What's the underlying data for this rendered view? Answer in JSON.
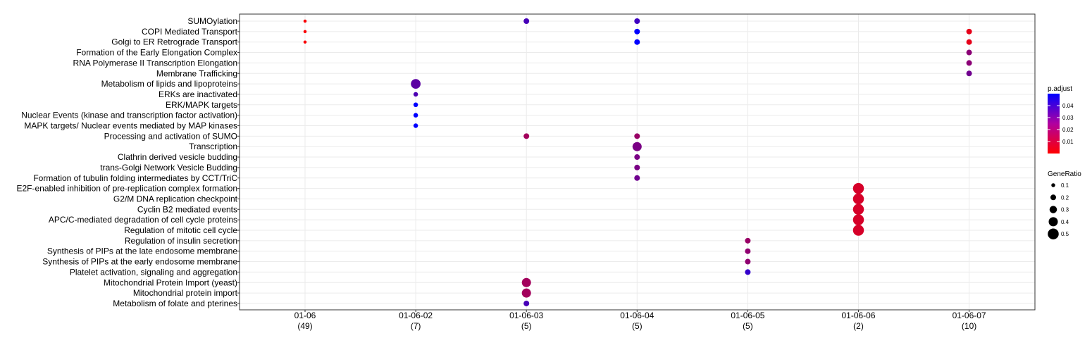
{
  "chart_data": {
    "type": "scatter",
    "title": "",
    "xlabel": "",
    "ylabel": "",
    "categories_x": [
      {
        "label": "01-06",
        "count": "(49)"
      },
      {
        "label": "01-06-02",
        "count": "(7)"
      },
      {
        "label": "01-06-03",
        "count": "(5)"
      },
      {
        "label": "01-06-04",
        "count": "(5)"
      },
      {
        "label": "01-06-05",
        "count": "(5)"
      },
      {
        "label": "01-06-06",
        "count": "(2)"
      },
      {
        "label": "01-06-07",
        "count": "(10)"
      }
    ],
    "categories_y": [
      "SUMOylation",
      "COPI Mediated Transport",
      "Golgi to ER Retrograde Transport",
      "Formation of the Early Elongation Complex",
      "RNA Polymerase II Transcription Elongation",
      "Membrane Trafficking",
      "Metabolism of lipids and lipoproteins",
      "ERKs are inactivated",
      "ERK/MAPK targets",
      "Nuclear Events (kinase and transcription factor activation)",
      "MAPK targets/ Nuclear events mediated by MAP kinases",
      "Processing and activation of SUMO",
      "Transcription",
      "Clathrin derived vesicle budding",
      "trans-Golgi Network Vesicle Budding",
      "Formation of tubulin folding intermediates by CCT/TriC",
      "E2F-enabled inhibition of pre-replication complex formation",
      "G2/M DNA replication checkpoint",
      "Cyclin B2 mediated events",
      "APC/C-mediated degradation of cell cycle proteins",
      "Regulation of mitotic cell cycle",
      "Regulation of insulin secretion",
      "Synthesis of PIPs at the late endosome membrane",
      "Synthesis of PIPs at the early endosome membrane",
      "Platelet activation, signaling and aggregation",
      "Mitochondrial Protein Import (yeast)",
      "Mitochondrial protein import",
      "Metabolism of folate and pterines"
    ],
    "points": [
      {
        "x": 0,
        "y": 0,
        "gene_ratio": 0.06,
        "p_adjust": 0.001
      },
      {
        "x": 0,
        "y": 1,
        "gene_ratio": 0.06,
        "p_adjust": 0.001
      },
      {
        "x": 0,
        "y": 2,
        "gene_ratio": 0.06,
        "p_adjust": 0.001
      },
      {
        "x": 2,
        "y": 0,
        "gene_ratio": 0.2,
        "p_adjust": 0.036
      },
      {
        "x": 3,
        "y": 0,
        "gene_ratio": 0.2,
        "p_adjust": 0.038
      },
      {
        "x": 3,
        "y": 1,
        "gene_ratio": 0.2,
        "p_adjust": 0.05
      },
      {
        "x": 3,
        "y": 2,
        "gene_ratio": 0.2,
        "p_adjust": 0.05
      },
      {
        "x": 6,
        "y": 1,
        "gene_ratio": 0.2,
        "p_adjust": 0.005
      },
      {
        "x": 6,
        "y": 2,
        "gene_ratio": 0.2,
        "p_adjust": 0.005
      },
      {
        "x": 6,
        "y": 3,
        "gene_ratio": 0.2,
        "p_adjust": 0.023
      },
      {
        "x": 6,
        "y": 4,
        "gene_ratio": 0.2,
        "p_adjust": 0.023
      },
      {
        "x": 6,
        "y": 5,
        "gene_ratio": 0.2,
        "p_adjust": 0.028
      },
      {
        "x": 1,
        "y": 6,
        "gene_ratio": 0.43,
        "p_adjust": 0.032
      },
      {
        "x": 1,
        "y": 7,
        "gene_ratio": 0.14,
        "p_adjust": 0.035
      },
      {
        "x": 1,
        "y": 8,
        "gene_ratio": 0.14,
        "p_adjust": 0.05
      },
      {
        "x": 1,
        "y": 9,
        "gene_ratio": 0.14,
        "p_adjust": 0.05
      },
      {
        "x": 1,
        "y": 10,
        "gene_ratio": 0.14,
        "p_adjust": 0.05
      },
      {
        "x": 2,
        "y": 11,
        "gene_ratio": 0.2,
        "p_adjust": 0.018
      },
      {
        "x": 3,
        "y": 11,
        "gene_ratio": 0.2,
        "p_adjust": 0.02
      },
      {
        "x": 3,
        "y": 12,
        "gene_ratio": 0.4,
        "p_adjust": 0.026
      },
      {
        "x": 3,
        "y": 13,
        "gene_ratio": 0.2,
        "p_adjust": 0.026
      },
      {
        "x": 3,
        "y": 14,
        "gene_ratio": 0.2,
        "p_adjust": 0.026
      },
      {
        "x": 3,
        "y": 15,
        "gene_ratio": 0.2,
        "p_adjust": 0.028
      },
      {
        "x": 5,
        "y": 16,
        "gene_ratio": 0.5,
        "p_adjust": 0.008
      },
      {
        "x": 5,
        "y": 17,
        "gene_ratio": 0.5,
        "p_adjust": 0.008
      },
      {
        "x": 5,
        "y": 18,
        "gene_ratio": 0.5,
        "p_adjust": 0.008
      },
      {
        "x": 5,
        "y": 19,
        "gene_ratio": 0.5,
        "p_adjust": 0.008
      },
      {
        "x": 5,
        "y": 20,
        "gene_ratio": 0.5,
        "p_adjust": 0.008
      },
      {
        "x": 4,
        "y": 21,
        "gene_ratio": 0.2,
        "p_adjust": 0.02
      },
      {
        "x": 4,
        "y": 22,
        "gene_ratio": 0.2,
        "p_adjust": 0.022
      },
      {
        "x": 4,
        "y": 23,
        "gene_ratio": 0.2,
        "p_adjust": 0.022
      },
      {
        "x": 4,
        "y": 24,
        "gene_ratio": 0.2,
        "p_adjust": 0.04
      },
      {
        "x": 2,
        "y": 25,
        "gene_ratio": 0.4,
        "p_adjust": 0.018
      },
      {
        "x": 2,
        "y": 26,
        "gene_ratio": 0.4,
        "p_adjust": 0.018
      },
      {
        "x": 2,
        "y": 27,
        "gene_ratio": 0.2,
        "p_adjust": 0.036
      }
    ],
    "legend_color": {
      "title": "p.adjust",
      "min": 0.0,
      "max": 0.05,
      "low_color": "#ff0000",
      "high_color": "#0000ff",
      "ticks": [
        0.04,
        0.03,
        0.02,
        0.01
      ],
      "tick_labels": [
        "0.04",
        "0.03",
        "0.02",
        "0.01"
      ]
    },
    "legend_size": {
      "title": "GeneRatio",
      "values": [
        0.1,
        0.2,
        0.3,
        0.4,
        0.5
      ],
      "labels": [
        "0.1",
        "0.2",
        "0.3",
        "0.4",
        "0.5"
      ]
    },
    "grid": true,
    "legend_position": "right"
  }
}
